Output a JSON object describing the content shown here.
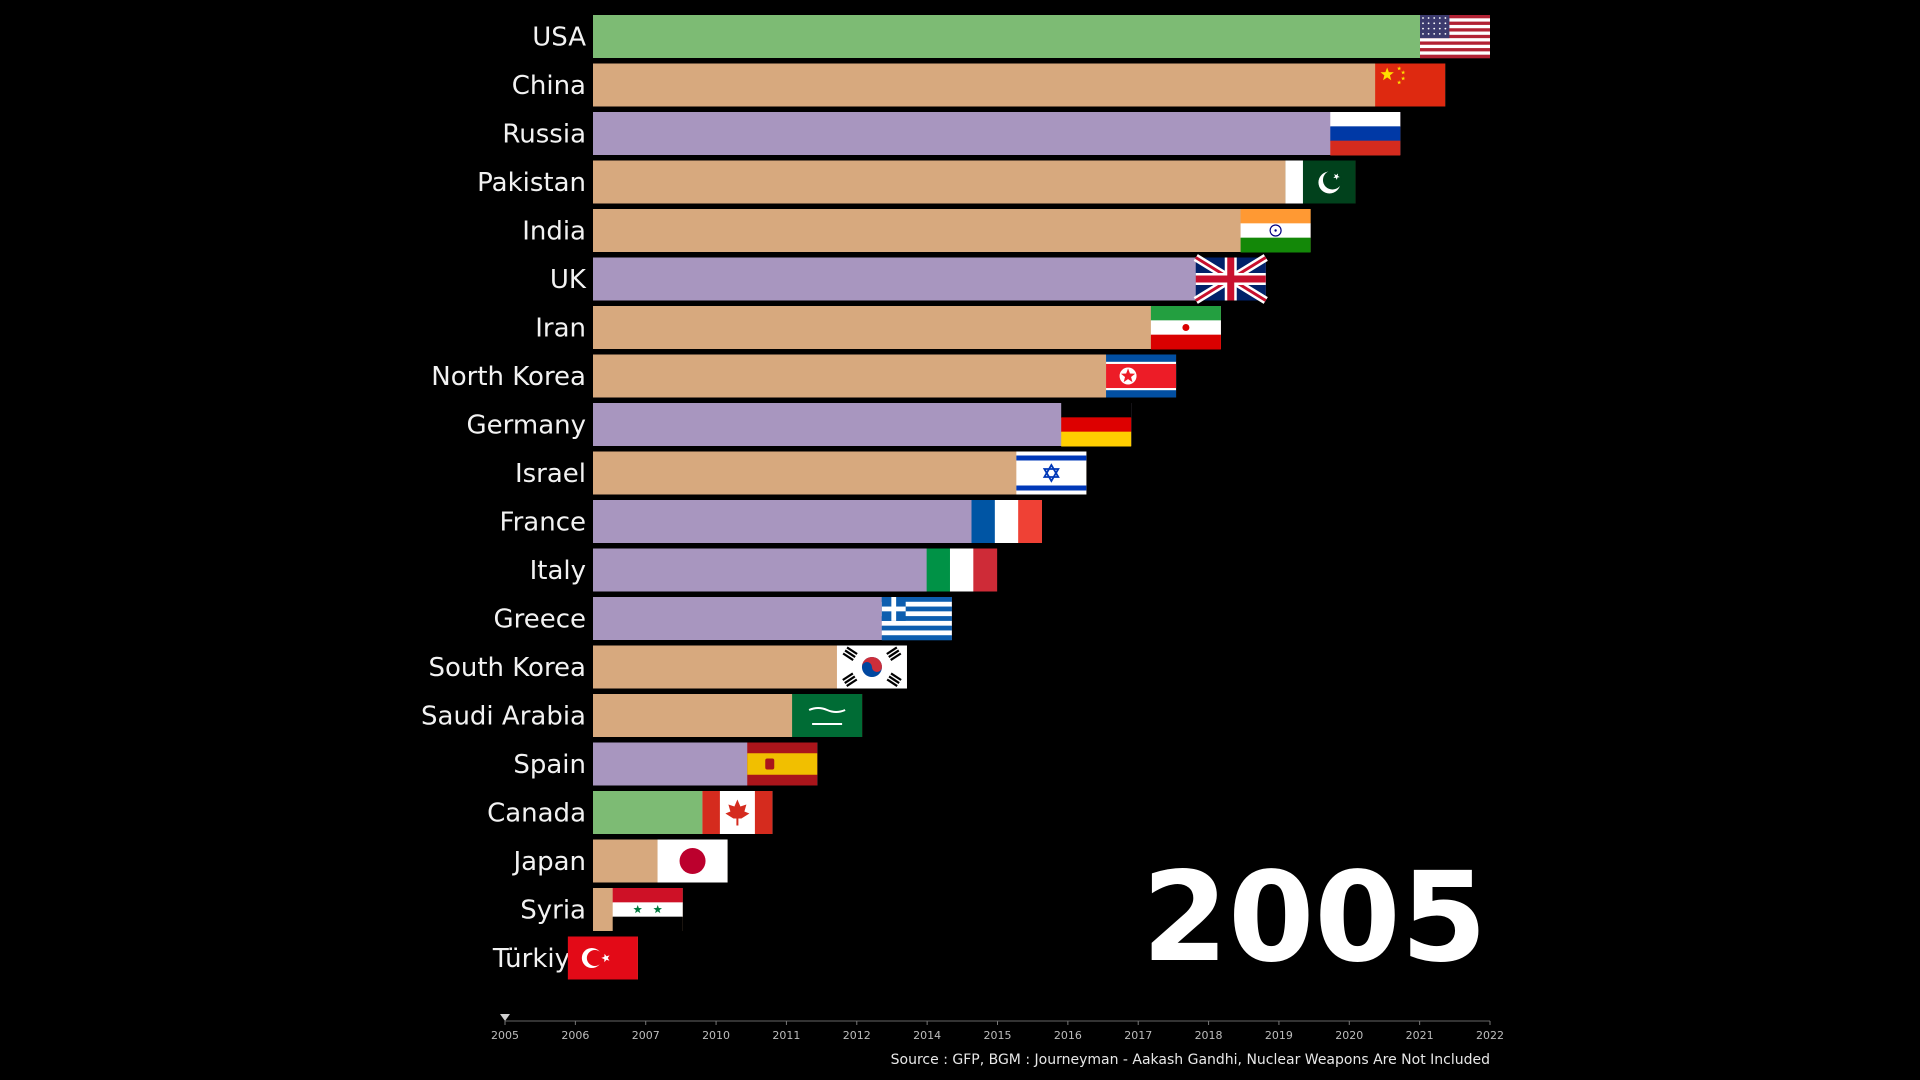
{
  "chart_data": {
    "type": "bar",
    "orientation": "horizontal",
    "current_year": "2005",
    "categories": [
      "USA",
      "China",
      "Russia",
      "Pakistan",
      "India",
      "UK",
      "Iran",
      "North Korea",
      "Germany",
      "Israel",
      "France",
      "Italy",
      "Greece",
      "South Korea",
      "Saudi Arabia",
      "Spain",
      "Canada",
      "Japan",
      "Syria",
      "Türkiye"
    ],
    "values": [
      20,
      19,
      18,
      17,
      16,
      15,
      14,
      13,
      12,
      11,
      10,
      9,
      8,
      7,
      6,
      5,
      4,
      3,
      2,
      1
    ],
    "flags": [
      "flag-usa-icon",
      "flag-china-icon",
      "flag-russia-icon",
      "flag-pakistan-icon",
      "flag-india-icon",
      "flag-uk-icon",
      "flag-iran-icon",
      "flag-north-korea-icon",
      "flag-germany-icon",
      "flag-israel-icon",
      "flag-france-icon",
      "flag-italy-icon",
      "flag-greece-icon",
      "flag-south-korea-icon",
      "flag-saudi-arabia-icon",
      "flag-spain-icon",
      "flag-canada-icon",
      "flag-japan-icon",
      "flag-syria-icon",
      "flag-turkiye-icon"
    ],
    "bar_colors": [
      "#7dbb74",
      "#d7a97e",
      "#a896bf",
      "#d7a97e",
      "#d7a97e",
      "#a896bf",
      "#d7a97e",
      "#d7a97e",
      "#a896bf",
      "#d7a97e",
      "#a896bf",
      "#a896bf",
      "#a896bf",
      "#d7a97e",
      "#d7a97e",
      "#a896bf",
      "#7dbb74",
      "#d7a97e",
      "#d7a97e",
      "#d7a97e"
    ],
    "xlim": [
      0,
      20
    ],
    "timeline": {
      "ticks": [
        "2005",
        "2006",
        "2007",
        "2010",
        "2011",
        "2012",
        "2014",
        "2015",
        "2016",
        "2017",
        "2018",
        "2019",
        "2020",
        "2021",
        "2022"
      ],
      "current": "2005"
    },
    "source": "Source : GFP, BGM : Journeyman - Aakash Gandhi, Nuclear Weapons Are Not Included"
  }
}
